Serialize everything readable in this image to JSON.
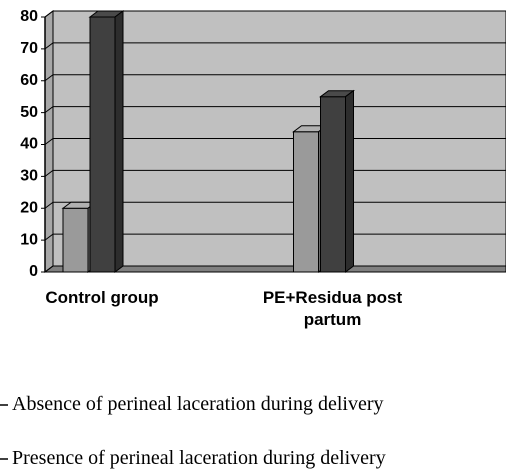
{
  "chart_data": {
    "type": "bar3d",
    "categories": [
      "Control group",
      "PE+Residua post partum"
    ],
    "series": [
      {
        "name": "Absence of perineal laceration during delivery",
        "color": "#9a9a9a",
        "values": [
          20,
          44
        ]
      },
      {
        "name": "Presence of perineal laceration during delivery",
        "color": "#404040",
        "values": [
          80,
          55
        ]
      }
    ],
    "ylim": [
      0,
      80
    ],
    "yticks": [
      0,
      10,
      20,
      30,
      40,
      50,
      60,
      70,
      80
    ],
    "grid": true,
    "legend": "bottom"
  }
}
